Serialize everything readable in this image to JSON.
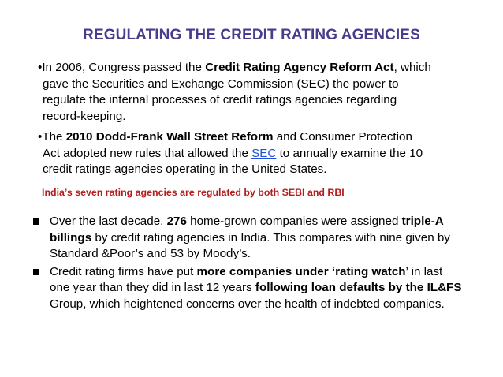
{
  "slide": {
    "title": "REGULATING THE CREDIT RATING AGENCIES",
    "para1": {
      "l1_a": "•In 2006, Congress passed the ",
      "l1_b": "Credit Rating Agency Reform Act",
      "l1_c": ", which",
      "l2": "gave the Securities and Exchange Commission (SEC) the power to",
      "l3": "regulate the internal processes of credit ratings agencies regarding",
      "l4": "record-keeping."
    },
    "para2": {
      "l1_a": "•The ",
      "l1_b": "2010 Dodd-Frank Wall Street Reform",
      "l1_c": " and Consumer Protection",
      "l2_a": "Act adopted new rules that allowed the ",
      "l2_link": "SEC",
      "l2_c": " to annually examine the 10",
      "l3": "credit ratings agencies operating in the United States."
    },
    "red_note": "India’s seven rating agencies are regulated by both SEBI and RBI",
    "bullet1": {
      "l1_a": "Over the last decade, ",
      "l1_b": "276",
      "l1_c": " home-grown companies were assigned ",
      "l1_d": "triple-A",
      "l2_a": "billings",
      "l2_b": " by credit rating agencies in India. This compares with nine given by",
      "l3": "Standard &Poor’s and 53 by Moody’s."
    },
    "bullet2": {
      "l1_a": "Credit rating firms have put ",
      "l1_b": "more companies under ‘rating watch",
      "l1_c": "’ in last",
      "l2_a": "one year than they did in last 12 years ",
      "l2_b": "following loan defaults by the IL&FS",
      "l3": "Group, which heightened concerns over the health of indebted companies."
    },
    "colors": {
      "title": "#4b3b8c",
      "note": "#b21e1e",
      "link": "#1f4fd8"
    }
  }
}
